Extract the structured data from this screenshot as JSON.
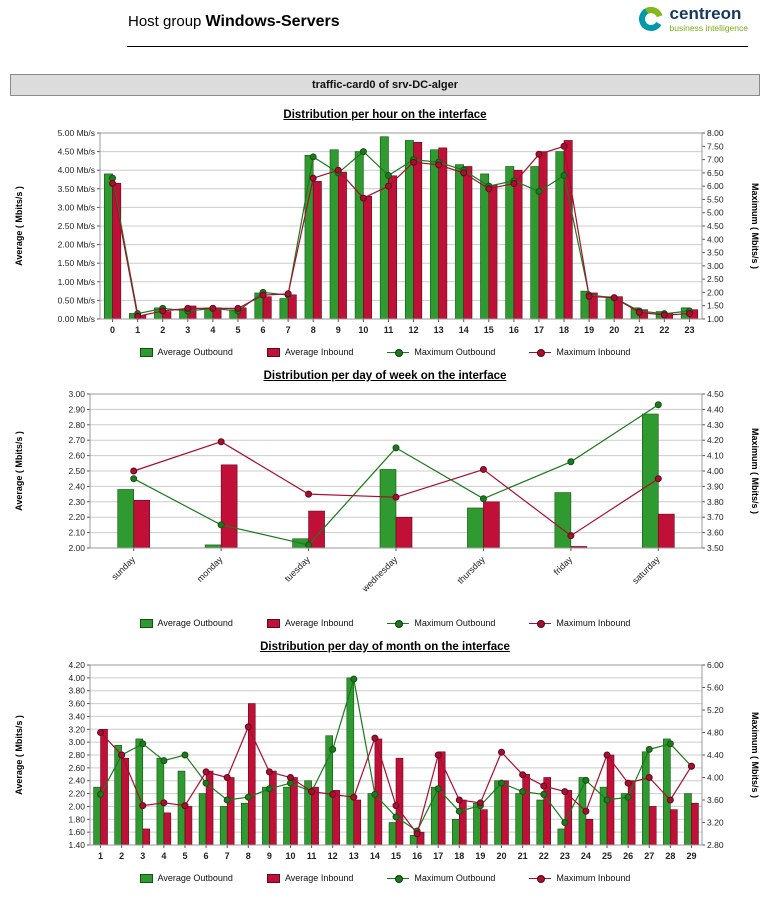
{
  "header": {
    "title_prefix": "Host group",
    "title_bold": "Windows-Servers",
    "logo_text": "centreon",
    "logo_subtext": "business intelligence"
  },
  "report": {
    "title": "traffic-card0 of srv-DC-alger"
  },
  "colors": {
    "green": "#2f9a2f",
    "green_dark": "#145214",
    "green_line": "#1c7a1c",
    "crimson": "#c01038",
    "crimson_dark": "#600a1e",
    "crimson_line": "#a80e30",
    "grid": "#cccccc",
    "border": "#999999",
    "logo_navy": "#16395f",
    "logo_teal": "#0099ab",
    "logo_green": "#83b81a"
  },
  "chart_data": [
    {
      "type": "bar",
      "title": "Distribution per hour on the interface",
      "categories": [
        "0",
        "1",
        "2",
        "3",
        "4",
        "5",
        "6",
        "7",
        "8",
        "9",
        "10",
        "11",
        "12",
        "13",
        "14",
        "15",
        "16",
        "17",
        "18",
        "19",
        "20",
        "21",
        "22",
        "23"
      ],
      "left_axis": {
        "label": "Average ( Mbits/s )",
        "min": 0.0,
        "max": 5.0,
        "step": 0.5,
        "decimals": 2,
        "suffix": " Mb/s"
      },
      "right_axis": {
        "label": "Maximum ( Mbits/s )",
        "min": 1.0,
        "max": 8.0,
        "step": 0.5,
        "decimals": 2,
        "suffix": ""
      },
      "bar_series": [
        {
          "name": "Average Outbound",
          "color": "green",
          "values": [
            3.9,
            0.15,
            0.3,
            0.25,
            0.3,
            0.25,
            0.7,
            0.55,
            4.4,
            4.55,
            4.5,
            4.9,
            4.8,
            4.55,
            4.15,
            3.9,
            4.1,
            4.1,
            4.5,
            0.75,
            0.6,
            0.3,
            0.2,
            0.3
          ]
        },
        {
          "name": "Average Inbound",
          "color": "crimson",
          "values": [
            3.65,
            0.1,
            0.2,
            0.35,
            0.3,
            0.3,
            0.6,
            0.65,
            3.7,
            3.95,
            3.3,
            3.85,
            4.75,
            4.6,
            4.1,
            3.6,
            4.0,
            4.5,
            4.8,
            0.7,
            0.6,
            0.25,
            0.15,
            0.25
          ]
        }
      ],
      "line_series": [
        {
          "name": "Maximum Outbound",
          "color": "green",
          "values": [
            6.3,
            1.2,
            1.4,
            1.3,
            1.4,
            1.3,
            2.0,
            1.9,
            7.1,
            6.5,
            7.3,
            6.4,
            7.0,
            6.9,
            6.6,
            6.0,
            6.2,
            5.8,
            6.4,
            1.9,
            1.8,
            1.3,
            1.2,
            1.3
          ]
        },
        {
          "name": "Maximum Inbound",
          "color": "crimson",
          "values": [
            6.1,
            1.1,
            1.3,
            1.4,
            1.4,
            1.4,
            1.9,
            1.95,
            6.3,
            6.6,
            5.55,
            6.0,
            6.9,
            6.8,
            6.5,
            5.9,
            6.1,
            7.2,
            7.5,
            1.85,
            1.8,
            1.25,
            1.15,
            1.2
          ]
        }
      ]
    },
    {
      "type": "bar",
      "title": "Distribution per day of week on the interface",
      "categories": [
        "sunday",
        "monday",
        "tuesday",
        "wednesday",
        "thursday",
        "friday",
        "saturday"
      ],
      "left_axis": {
        "label": "Average ( Mbits/s )",
        "min": 2.0,
        "max": 3.0,
        "step": 0.1,
        "decimals": 2,
        "suffix": ""
      },
      "right_axis": {
        "label": "Maximum ( Mbits/s )",
        "min": 3.5,
        "max": 4.5,
        "step": 0.1,
        "decimals": 2,
        "suffix": ""
      },
      "bar_series": [
        {
          "name": "Average Outbound",
          "color": "green",
          "values": [
            2.38,
            2.02,
            2.06,
            2.51,
            2.26,
            2.36,
            2.87
          ]
        },
        {
          "name": "Average Inbound",
          "color": "crimson",
          "values": [
            2.31,
            2.54,
            2.24,
            2.2,
            2.3,
            2.01,
            2.22
          ]
        }
      ],
      "line_series": [
        {
          "name": "Maximum Outbound",
          "color": "green",
          "values": [
            3.95,
            3.65,
            3.52,
            4.15,
            3.82,
            4.06,
            4.43
          ]
        },
        {
          "name": "Maximum Inbound",
          "color": "crimson",
          "values": [
            4.0,
            4.19,
            3.85,
            3.83,
            4.01,
            3.58,
            3.95
          ]
        }
      ]
    },
    {
      "type": "bar",
      "title": "Distribution per day of month on the interface",
      "categories": [
        "1",
        "2",
        "3",
        "4",
        "5",
        "6",
        "7",
        "8",
        "9",
        "10",
        "11",
        "12",
        "13",
        "14",
        "15",
        "16",
        "17",
        "18",
        "19",
        "20",
        "21",
        "22",
        "23",
        "24",
        "25",
        "26",
        "27",
        "28",
        "29"
      ],
      "left_axis": {
        "label": "Average ( Mbits/s )",
        "min": 1.4,
        "max": 4.2,
        "step": 0.2,
        "decimals": 2,
        "suffix": ""
      },
      "right_axis": {
        "label": "Maximum ( Mbits/s )",
        "min": 2.8,
        "max": 6.0,
        "step": 0.4,
        "decimals": 2,
        "suffix": ""
      },
      "bar_series": [
        {
          "name": "Average Outbound",
          "color": "green",
          "values": [
            2.3,
            2.95,
            3.05,
            2.75,
            2.55,
            2.2,
            2.0,
            2.05,
            2.3,
            2.3,
            2.4,
            3.1,
            4.0,
            2.2,
            1.75,
            1.55,
            2.3,
            1.8,
            2.05,
            2.4,
            2.2,
            2.1,
            1.65,
            2.45,
            2.3,
            2.2,
            2.85,
            3.05,
            2.2
          ]
        },
        {
          "name": "Average Inbound",
          "color": "crimson",
          "values": [
            3.2,
            2.75,
            1.65,
            1.9,
            2.0,
            2.55,
            2.45,
            3.6,
            2.55,
            2.45,
            2.3,
            2.25,
            2.1,
            3.05,
            2.75,
            1.6,
            2.85,
            2.1,
            1.95,
            2.4,
            2.5,
            2.45,
            2.25,
            1.8,
            2.8,
            2.4,
            2.0,
            1.95,
            2.05
          ]
        }
      ],
      "line_series": [
        {
          "name": "Maximum Outbound",
          "color": "green",
          "values": [
            3.7,
            4.4,
            4.6,
            4.3,
            4.4,
            3.9,
            3.6,
            3.65,
            3.8,
            3.9,
            3.75,
            4.5,
            5.75,
            3.7,
            3.3,
            3.05,
            3.8,
            3.4,
            3.5,
            3.9,
            3.75,
            3.7,
            3.2,
            3.95,
            3.6,
            3.65,
            4.5,
            4.6,
            4.2
          ]
        },
        {
          "name": "Maximum Inbound",
          "color": "crimson",
          "values": [
            4.8,
            4.4,
            3.5,
            3.55,
            3.5,
            4.1,
            4.0,
            4.9,
            4.1,
            4.0,
            3.75,
            3.7,
            3.65,
            4.7,
            3.5,
            3.0,
            4.4,
            3.6,
            3.55,
            4.45,
            4.05,
            3.85,
            3.75,
            3.4,
            4.4,
            3.9,
            4.0,
            3.6,
            4.2
          ]
        }
      ]
    }
  ]
}
